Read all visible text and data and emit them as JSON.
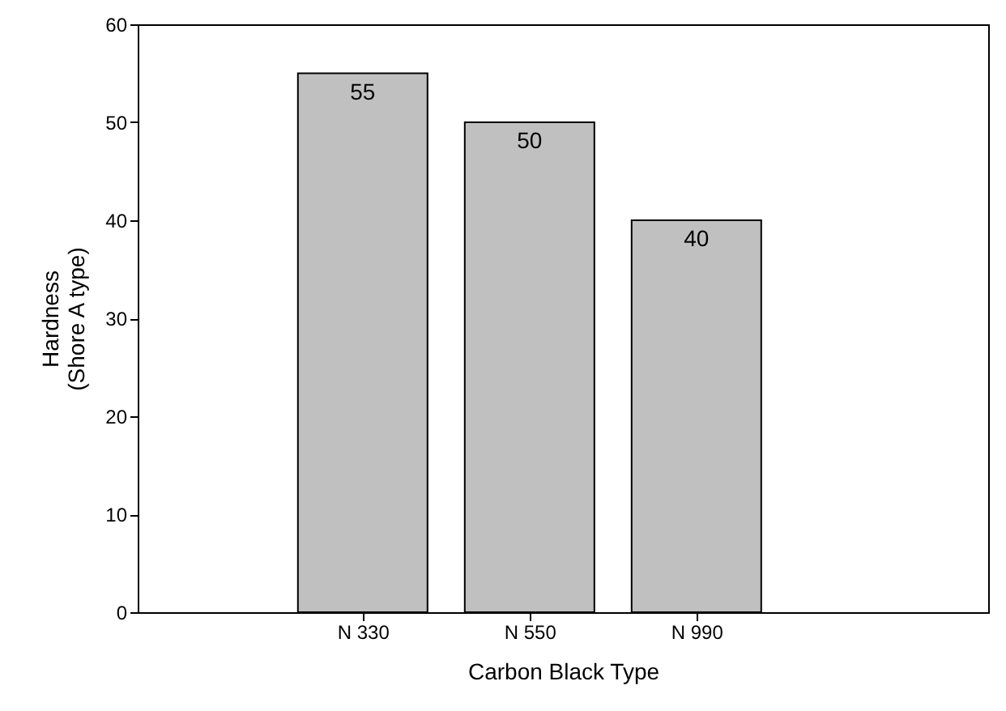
{
  "chart_data": {
    "type": "bar",
    "xlabel": "Carbon Black Type",
    "ylabel": "Hardness\n(Shore A type)",
    "categories": [
      "N 330",
      "N 550",
      "N 990"
    ],
    "values": [
      55,
      50,
      40
    ],
    "color": "#c0c0c0",
    "ylim": [
      0,
      60
    ],
    "yticks": [
      0,
      10,
      20,
      30,
      40,
      50,
      60
    ],
    "grid": false,
    "data_labels": true
  }
}
